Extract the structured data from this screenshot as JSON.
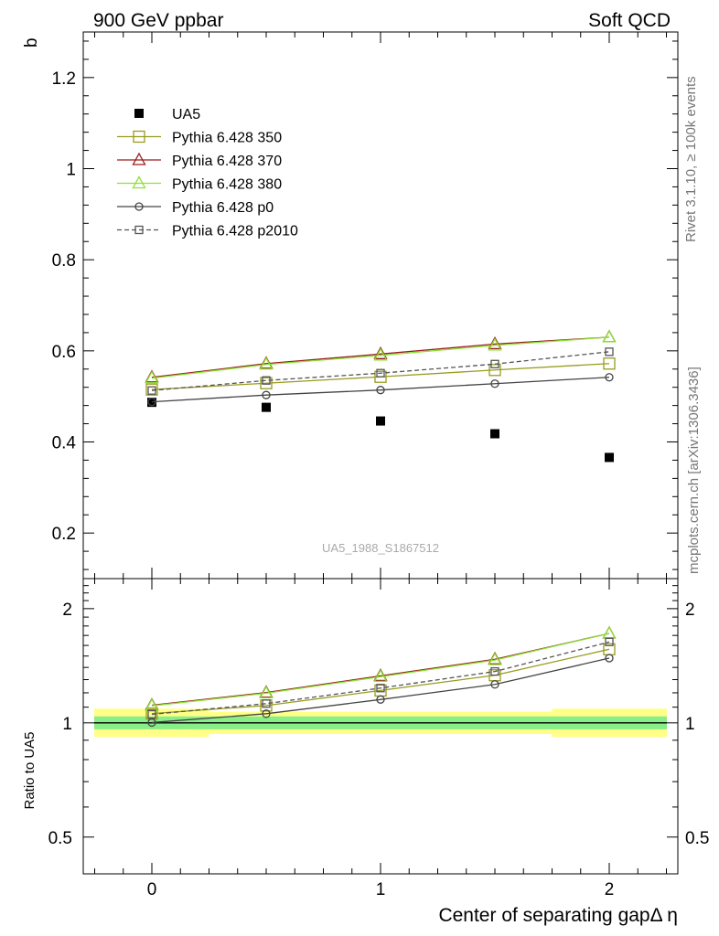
{
  "header": {
    "left": "900 GeV ppbar",
    "right": "Soft QCD"
  },
  "side_labels": {
    "rivet": "Rivet 3.1.10, ≥ 100k events",
    "mcplots": "mcplots.cern.ch [arXiv:1306.3436]"
  },
  "watermark": "UA5_1988_S1867512",
  "chart_data": [
    {
      "type": "scatter",
      "panel": "main",
      "ylabel": "b",
      "xlabel": "",
      "xlim": [
        -0.3,
        2.3
      ],
      "ylim": [
        0.1,
        1.3
      ],
      "yticks": [
        "0.2",
        "0.4",
        "0.6",
        "0.8",
        "1",
        "1.2"
      ],
      "ytick_values": [
        0.2,
        0.4,
        0.6,
        0.8,
        1.0,
        1.2
      ],
      "legend_position": "top-left",
      "x": [
        0,
        0.5,
        1,
        1.5,
        2
      ],
      "series": [
        {
          "name": "UA5",
          "style": "data",
          "marker": "filled-square",
          "color": "#000000",
          "values": [
            0.487,
            0.476,
            0.446,
            0.418,
            0.366
          ]
        },
        {
          "name": "Pythia 6.428 350",
          "marker": "open-square",
          "color": "#999b1e",
          "dashed": false,
          "values": [
            0.515,
            0.529,
            0.543,
            0.558,
            0.572
          ]
        },
        {
          "name": "Pythia 6.428 370",
          "marker": "open-triangle",
          "color": "#9a1c1c",
          "dashed": false,
          "values": [
            0.542,
            0.572,
            0.593,
            0.615,
            0.63
          ]
        },
        {
          "name": "Pythia 6.428 380",
          "marker": "open-triangle",
          "color": "#8ae234",
          "dashed": false,
          "values": [
            0.54,
            0.57,
            0.59,
            0.612,
            0.63
          ]
        },
        {
          "name": "Pythia 6.428 p0",
          "marker": "open-circle",
          "color": "#444444",
          "dashed": false,
          "values": [
            0.488,
            0.503,
            0.514,
            0.528,
            0.542
          ]
        },
        {
          "name": "Pythia 6.428 p2010",
          "marker": "open-small-square",
          "color": "#555555",
          "dashed": true,
          "values": [
            0.513,
            0.535,
            0.551,
            0.571,
            0.598
          ]
        }
      ]
    },
    {
      "type": "line",
      "panel": "ratio",
      "ylabel": "Ratio to UA5",
      "xlabel": "Center of separating gapΔ η",
      "xlim": [
        -0.3,
        2.3
      ],
      "ylim": [
        0.4,
        2.4
      ],
      "log_scale_y": true,
      "yticks": [
        "0.5",
        "1",
        "2"
      ],
      "ytick_values": [
        0.5,
        1,
        2
      ],
      "xticks": [
        "0",
        "1",
        "2"
      ],
      "xtick_values": [
        0,
        1,
        2
      ],
      "x": [
        0,
        0.5,
        1,
        1.5,
        2
      ],
      "bands": {
        "yellow": [
          1.09,
          1.07,
          1.07,
          1.07,
          1.09
        ],
        "green": [
          1.04,
          1.04,
          1.04,
          1.04,
          1.04
        ]
      },
      "series": [
        {
          "name": "Pythia 6.428 350",
          "color": "#999b1e",
          "marker": "open-square",
          "dashed": false,
          "values": [
            1.058,
            1.111,
            1.217,
            1.335,
            1.563
          ]
        },
        {
          "name": "Pythia 6.428 370",
          "color": "#9a1c1c",
          "marker": "open-triangle",
          "dashed": false,
          "values": [
            1.113,
            1.202,
            1.33,
            1.471,
            1.721
          ]
        },
        {
          "name": "Pythia 6.428 380",
          "color": "#8ae234",
          "marker": "open-triangle",
          "dashed": false,
          "values": [
            1.109,
            1.197,
            1.323,
            1.464,
            1.721
          ]
        },
        {
          "name": "Pythia 6.428 p0",
          "color": "#444444",
          "marker": "open-circle",
          "dashed": false,
          "values": [
            1.002,
            1.057,
            1.152,
            1.263,
            1.481
          ]
        },
        {
          "name": "Pythia 6.428 p2010",
          "color": "#555555",
          "marker": "open-small-square",
          "dashed": true,
          "values": [
            1.053,
            1.124,
            1.235,
            1.366,
            1.634
          ]
        }
      ]
    }
  ]
}
